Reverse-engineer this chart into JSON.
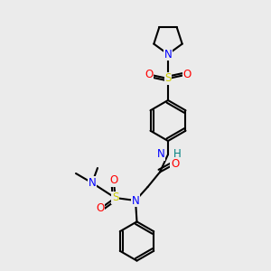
{
  "background_color": "#ebebeb",
  "figsize": [
    3.0,
    3.0
  ],
  "dpi": 100,
  "bond_color": "black",
  "bond_lw": 1.5,
  "atom_colors": {
    "N": "#0000ff",
    "O": "#ff0000",
    "S": "#cccc00",
    "H": "#008080",
    "C": "black"
  },
  "font_size": 8.5
}
